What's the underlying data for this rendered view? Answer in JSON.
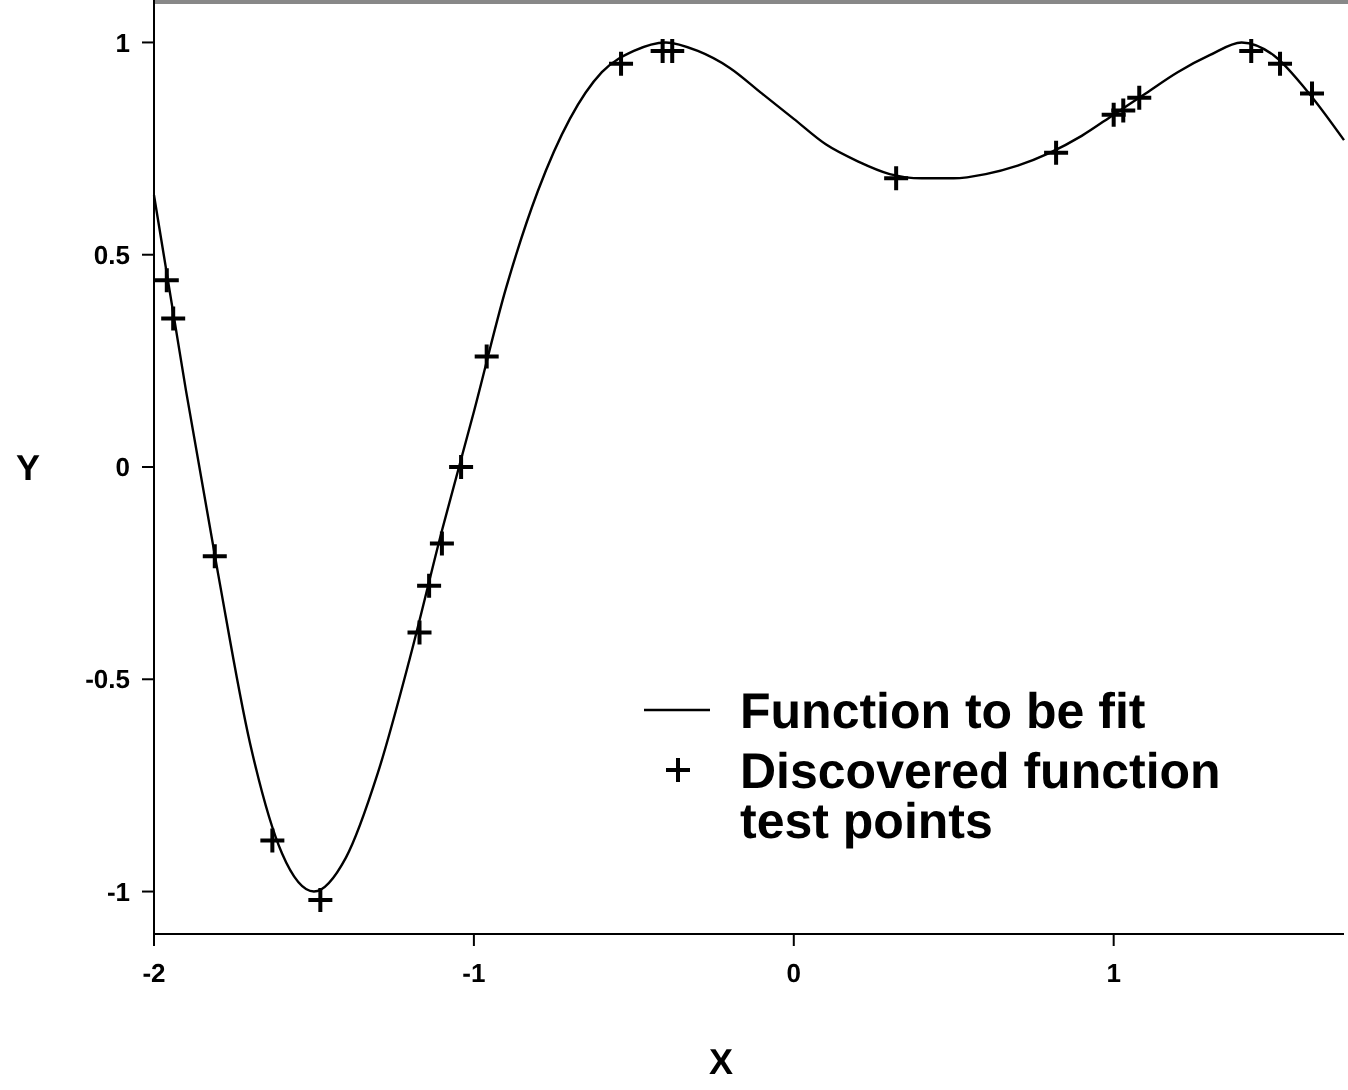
{
  "chart_data": {
    "type": "line",
    "xlabel": "X",
    "ylabel": "Y",
    "xlim": [
      -2,
      1.72
    ],
    "ylim": [
      -1.1,
      1.1
    ],
    "xticks": [
      -2,
      -1,
      0,
      1
    ],
    "yticks": [
      -1,
      -0.5,
      0,
      0.5,
      1
    ],
    "grid": false,
    "legend": "bottom right",
    "series": [
      {
        "name": "Function to be fit",
        "color": "#000000",
        "marker": "none",
        "line_style": "solid",
        "x": [
          -2,
          -1.9,
          -1.8,
          -1.7,
          -1.6,
          -1.5,
          -1.4,
          -1.3,
          -1.2,
          -1.1,
          -1,
          -0.9,
          -0.8,
          -0.7,
          -0.6,
          -0.5,
          -0.4,
          -0.3,
          -0.2,
          -0.1,
          0,
          0.1,
          0.2,
          0.3,
          0.4,
          0.5,
          0.6,
          0.7,
          0.8,
          0.9,
          1,
          1.1,
          1.2,
          1.3,
          1.4,
          1.5,
          1.6,
          1.72
        ],
        "values": [
          0.64,
          0.18,
          -0.25,
          -0.65,
          -0.91,
          -1.0,
          -0.92,
          -0.72,
          -0.45,
          -0.15,
          0.13,
          0.42,
          0.65,
          0.82,
          0.93,
          0.98,
          1.0,
          0.98,
          0.94,
          0.88,
          0.82,
          0.76,
          0.72,
          0.69,
          0.68,
          0.68,
          0.69,
          0.71,
          0.74,
          0.78,
          0.83,
          0.88,
          0.93,
          0.97,
          1.0,
          0.97,
          0.89,
          0.77
        ]
      },
      {
        "name": "Discovered function test points",
        "type": "scatter",
        "color": "#000000",
        "marker": "cross",
        "x": [
          -1.96,
          -1.94,
          -1.81,
          -1.63,
          -1.48,
          -1.17,
          -1.14,
          -1.1,
          -1.04,
          -0.96,
          -0.54,
          -0.41,
          -0.38,
          0.32,
          0.82,
          1.0,
          1.03,
          1.08,
          1.43,
          1.52,
          1.62
        ],
        "values": [
          0.44,
          0.35,
          -0.21,
          -0.88,
          -1.02,
          -0.39,
          -0.28,
          -0.18,
          0.0,
          0.26,
          0.95,
          0.98,
          0.98,
          0.68,
          0.74,
          0.83,
          0.84,
          0.87,
          0.98,
          0.95,
          0.88
        ]
      }
    ]
  }
}
